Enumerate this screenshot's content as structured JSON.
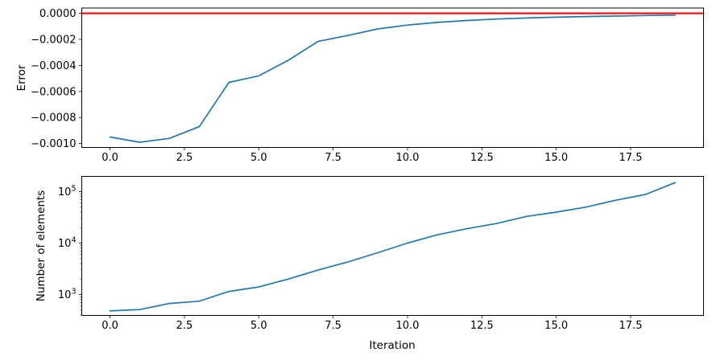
{
  "labels": {
    "top_ylabel": "Error",
    "bottom_ylabel": "Number of elements",
    "xlabel": "Iteration"
  },
  "colors": {
    "series_line": "#1f77b4",
    "zero_line": "#ff0000",
    "axis": "#000000",
    "background": "#ffffff"
  },
  "chart_data": [
    {
      "type": "line",
      "title": "",
      "xlabel": "",
      "ylabel": "Error",
      "yscale": "linear",
      "grid": false,
      "legend": null,
      "x": [
        0,
        1,
        2,
        3,
        4,
        5,
        6,
        7,
        8,
        9,
        10,
        11,
        12,
        13,
        14,
        15,
        16,
        17,
        18,
        19
      ],
      "series": [
        {
          "name": "error",
          "color": "#1f77b4",
          "values": [
            -0.00095,
            -0.00099,
            -0.00096,
            -0.00087,
            -0.00053,
            -0.00048,
            -0.00036,
            -0.000215,
            -0.00017,
            -0.00012,
            -9e-05,
            -7e-05,
            -5.5e-05,
            -4.4e-05,
            -3.6e-05,
            -3e-05,
            -2.5e-05,
            -2.1e-05,
            -1.7e-05,
            -1.4e-05
          ]
        },
        {
          "name": "zero-reference",
          "color": "#ff0000",
          "hline_y": 0
        }
      ],
      "xlim": [
        -0.95,
        19.95
      ],
      "ylim": [
        -0.00103,
        4.05e-05
      ],
      "x_ticks": [
        0,
        2.5,
        5,
        7.5,
        10,
        12.5,
        15,
        17.5
      ],
      "x_tick_labels": [
        "0.0",
        "2.5",
        "5.0",
        "7.5",
        "10.0",
        "12.5",
        "15.0",
        "17.5"
      ],
      "y_ticks": [
        0,
        -0.0002,
        -0.0004,
        -0.0006,
        -0.0008,
        -0.001
      ],
      "y_tick_labels": [
        "0.0000",
        "−0.0002",
        "−0.0004",
        "−0.0006",
        "−0.0008",
        "−0.0010"
      ]
    },
    {
      "type": "line",
      "title": "",
      "xlabel": "Iteration",
      "ylabel": "Number of elements",
      "yscale": "log",
      "grid": false,
      "legend": null,
      "x": [
        0,
        1,
        2,
        3,
        4,
        5,
        6,
        7,
        8,
        9,
        10,
        11,
        12,
        13,
        14,
        15,
        16,
        17,
        18,
        19
      ],
      "series": [
        {
          "name": "num-elements",
          "color": "#1f77b4",
          "values": [
            480,
            510,
            670,
            740,
            1150,
            1400,
            2000,
            3000,
            4300,
            6500,
            10000,
            14500,
            19000,
            24000,
            33000,
            40000,
            50000,
            68000,
            88000,
            150000
          ]
        }
      ],
      "xlim": [
        -0.95,
        19.95
      ],
      "ylim": [
        392,
        198000
      ],
      "x_ticks": [
        0,
        2.5,
        5,
        7.5,
        10,
        12.5,
        15,
        17.5
      ],
      "x_tick_labels": [
        "0.0",
        "2.5",
        "5.0",
        "7.5",
        "10.0",
        "12.5",
        "15.0",
        "17.5"
      ],
      "y_major_ticks": [
        1000,
        10000,
        100000
      ],
      "y_tick_base": "10",
      "y_tick_exponents": [
        "3",
        "4",
        "5"
      ]
    }
  ]
}
